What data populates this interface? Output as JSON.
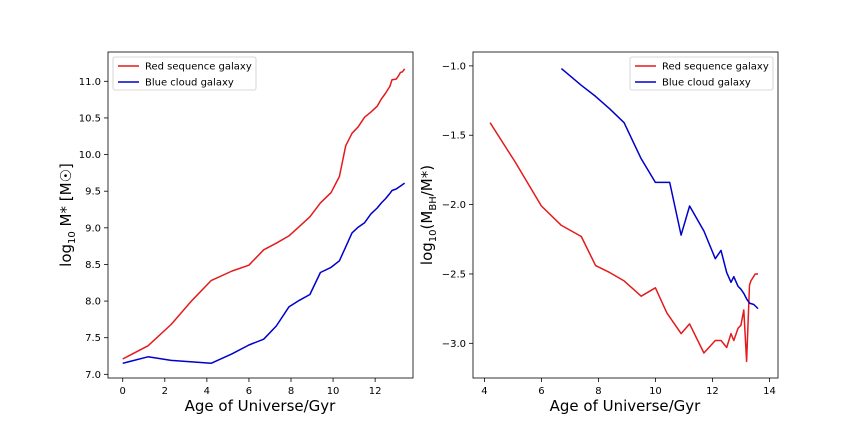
{
  "chart_data": [
    {
      "type": "line",
      "title": "",
      "xlabel": "Age of Universe/Gyr",
      "ylabel": "log10 M* [M☉]",
      "ylabel_parts": {
        "prefix": "log",
        "sub": "10",
        "suffix": " M* [M☉]"
      },
      "xlim": [
        -0.7,
        13.8
      ],
      "ylim": [
        6.95,
        11.4
      ],
      "xticks": [
        0,
        2,
        4,
        6,
        8,
        10,
        12
      ],
      "yticks": [
        7.0,
        7.5,
        8.0,
        8.5,
        9.0,
        9.5,
        10.0,
        10.5,
        11.0
      ],
      "ytick_labels": [
        "7.0",
        "7.5",
        "8.0",
        "8.5",
        "9.0",
        "9.5",
        "10.0",
        "10.5",
        "11.0"
      ],
      "grid": false,
      "legend_position": "top-left",
      "series": [
        {
          "name": "Red sequence galaxy",
          "color": "#e41a1c",
          "x": [
            0,
            1.2,
            2.3,
            3.3,
            4.2,
            5.2,
            6.0,
            6.7,
            7.3,
            7.9,
            8.4,
            8.9,
            9.4,
            9.9,
            10.3,
            10.6,
            10.9,
            11.2,
            11.5,
            11.8,
            12.1,
            12.3,
            12.5,
            12.7,
            12.8,
            13.0,
            13.1,
            13.2,
            13.3,
            13.4
          ],
          "y": [
            7.21,
            7.39,
            7.68,
            8.01,
            8.28,
            8.41,
            8.49,
            8.7,
            8.79,
            8.89,
            9.02,
            9.15,
            9.34,
            9.48,
            9.7,
            10.12,
            10.29,
            10.38,
            10.51,
            10.58,
            10.66,
            10.76,
            10.84,
            10.93,
            11.02,
            11.03,
            11.07,
            11.12,
            11.13,
            11.17
          ]
        },
        {
          "name": "Blue cloud galaxy",
          "color": "#0000cc",
          "x": [
            0,
            1.2,
            2.3,
            3.3,
            4.2,
            5.2,
            6.0,
            6.7,
            7.3,
            7.9,
            8.4,
            8.9,
            9.4,
            9.9,
            10.3,
            10.6,
            10.9,
            11.2,
            11.5,
            11.8,
            12.1,
            12.3,
            12.5,
            12.7,
            12.8,
            13.0,
            13.1,
            13.2,
            13.3,
            13.4
          ],
          "y": [
            7.15,
            7.24,
            7.19,
            7.17,
            7.15,
            7.28,
            7.4,
            7.48,
            7.66,
            7.92,
            8.01,
            8.09,
            8.39,
            8.46,
            8.55,
            8.74,
            8.93,
            9.01,
            9.07,
            9.19,
            9.27,
            9.34,
            9.4,
            9.47,
            9.51,
            9.53,
            9.55,
            9.57,
            9.59,
            9.61
          ]
        }
      ]
    },
    {
      "type": "line",
      "title": "",
      "xlabel": "Age of Universe/Gyr",
      "ylabel": "log10(MBH/M*)",
      "ylabel_parts": {
        "prefix": "log",
        "sub": "10",
        "mid": "(M",
        "sub2": "BH",
        "suffix": "/M*)"
      },
      "xlim": [
        3.6,
        14.3
      ],
      "ylim": [
        -3.25,
        -0.9
      ],
      "xticks": [
        4,
        6,
        8,
        10,
        12,
        14
      ],
      "yticks": [
        -1.0,
        -1.5,
        -2.0,
        -2.5,
        -3.0
      ],
      "ytick_labels": [
        "−1.0",
        "−1.5",
        "−2.0",
        "−2.5",
        "−3.0"
      ],
      "grid": false,
      "legend_position": "top-right",
      "series": [
        {
          "name": "Red sequence galaxy",
          "color": "#e41a1c",
          "x": [
            4.2,
            5.1,
            6.0,
            6.7,
            7.4,
            7.9,
            8.4,
            8.9,
            9.5,
            10.0,
            10.4,
            10.9,
            11.2,
            11.7,
            12.1,
            12.3,
            12.5,
            12.65,
            12.75,
            12.9,
            13.0,
            13.1,
            13.2,
            13.3,
            13.35,
            13.5,
            13.6
          ],
          "y": [
            -1.41,
            -1.7,
            -2.01,
            -2.15,
            -2.23,
            -2.44,
            -2.49,
            -2.55,
            -2.66,
            -2.6,
            -2.78,
            -2.93,
            -2.86,
            -3.07,
            -2.98,
            -2.98,
            -3.03,
            -2.93,
            -2.98,
            -2.89,
            -2.87,
            -2.76,
            -3.13,
            -2.58,
            -2.55,
            -2.5,
            -2.5
          ]
        },
        {
          "name": "Blue cloud galaxy",
          "color": "#0000cc",
          "x": [
            6.7,
            7.4,
            7.9,
            8.4,
            8.9,
            9.5,
            10.0,
            10.5,
            10.9,
            11.2,
            11.7,
            12.1,
            12.3,
            12.5,
            12.65,
            12.75,
            12.9,
            13.0,
            13.1,
            13.2,
            13.3,
            13.45,
            13.6
          ],
          "y": [
            -1.02,
            -1.14,
            -1.22,
            -1.31,
            -1.41,
            -1.67,
            -1.84,
            -1.84,
            -2.22,
            -2.01,
            -2.19,
            -2.39,
            -2.33,
            -2.49,
            -2.56,
            -2.52,
            -2.59,
            -2.61,
            -2.64,
            -2.68,
            -2.71,
            -2.72,
            -2.75
          ]
        }
      ]
    }
  ]
}
